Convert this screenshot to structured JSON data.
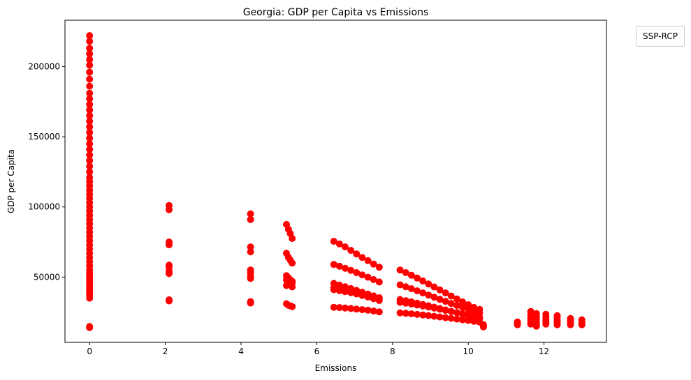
{
  "chart_data": {
    "type": "scatter",
    "title": "Georgia: GDP per Capita vs Emissions",
    "xlabel": "Emissions",
    "ylabel": "GDP per Capita",
    "xlim": [
      -0.65,
      13.65
    ],
    "ylim": [
      3500,
      233000
    ],
    "xticks": [
      0,
      2,
      4,
      6,
      8,
      10,
      12
    ],
    "yticks": [
      50000,
      100000,
      150000,
      200000
    ],
    "xtick_labels": [
      "0",
      "2",
      "4",
      "6",
      "8",
      "10",
      "12"
    ],
    "ytick_labels": [
      "50000",
      "100000",
      "150000",
      "200000"
    ],
    "grid": false,
    "marker_color": "#ff0000",
    "legend": {
      "title": "SSP-RCP",
      "placement": "outside-upper-right"
    },
    "series": [
      {
        "points": [
          [
            0,
            14000
          ],
          [
            0,
            14800
          ],
          [
            0,
            35000
          ],
          [
            0,
            37000
          ],
          [
            0,
            39000
          ],
          [
            0,
            41000
          ],
          [
            0,
            43000
          ],
          [
            0,
            45000
          ],
          [
            0,
            47000
          ],
          [
            0,
            49000
          ],
          [
            0,
            51000
          ],
          [
            0,
            53000
          ],
          [
            0,
            55000
          ],
          [
            0,
            58000
          ],
          [
            0,
            61000
          ],
          [
            0,
            64000
          ],
          [
            0,
            67000
          ],
          [
            0,
            70000
          ],
          [
            0,
            73000
          ],
          [
            0,
            76000
          ],
          [
            0,
            79000
          ],
          [
            0,
            82000
          ],
          [
            0,
            85000
          ],
          [
            0,
            88000
          ],
          [
            0,
            91000
          ],
          [
            0,
            94000
          ],
          [
            0,
            97000
          ],
          [
            0,
            100000
          ],
          [
            0,
            103000
          ],
          [
            0,
            106000
          ],
          [
            0,
            109000
          ],
          [
            0,
            112000
          ],
          [
            0,
            115000
          ],
          [
            0,
            118000
          ],
          [
            0,
            121000
          ],
          [
            0,
            125000
          ],
          [
            0,
            129000
          ],
          [
            0,
            133000
          ],
          [
            0,
            137000
          ],
          [
            0,
            141000
          ],
          [
            0,
            145000
          ],
          [
            0,
            149000
          ],
          [
            0,
            153000
          ],
          [
            0,
            157000
          ],
          [
            0,
            161000
          ],
          [
            0,
            165000
          ],
          [
            0,
            169000
          ],
          [
            0,
            173000
          ],
          [
            0,
            177000
          ],
          [
            0,
            181000
          ],
          [
            0,
            186000
          ],
          [
            0,
            191000
          ],
          [
            0,
            196000
          ],
          [
            0,
            201000
          ],
          [
            0,
            205000
          ],
          [
            0,
            209000
          ],
          [
            0,
            213000
          ],
          [
            0,
            218000
          ],
          [
            0,
            222000
          ],
          [
            2.1,
            33000
          ],
          [
            2.1,
            33800
          ],
          [
            2.1,
            52500
          ],
          [
            2.1,
            54000
          ],
          [
            2.1,
            57000
          ],
          [
            2.1,
            58500
          ],
          [
            2.1,
            73000
          ],
          [
            2.1,
            75000
          ],
          [
            2.1,
            98000
          ],
          [
            2.1,
            101000
          ],
          [
            4.25,
            31500
          ],
          [
            4.25,
            32500
          ],
          [
            4.25,
            49000
          ],
          [
            4.25,
            50500
          ],
          [
            4.25,
            53000
          ],
          [
            4.25,
            55000
          ],
          [
            4.25,
            68000
          ],
          [
            4.25,
            71500
          ],
          [
            4.25,
            91000
          ],
          [
            4.25,
            95000
          ],
          [
            5.2,
            31000
          ],
          [
            5.25,
            30000
          ],
          [
            5.3,
            29500
          ],
          [
            5.35,
            29000
          ],
          [
            5.2,
            44000
          ],
          [
            5.25,
            46000
          ],
          [
            5.3,
            45000
          ],
          [
            5.35,
            43000
          ],
          [
            5.2,
            48000
          ],
          [
            5.25,
            46500
          ],
          [
            5.3,
            45500
          ],
          [
            5.35,
            46000
          ],
          [
            5.2,
            51000
          ],
          [
            5.25,
            49500
          ],
          [
            5.3,
            48000
          ],
          [
            5.35,
            47000
          ],
          [
            5.2,
            67000
          ],
          [
            5.25,
            64000
          ],
          [
            5.3,
            62000
          ],
          [
            5.35,
            60000
          ],
          [
            5.2,
            87500
          ],
          [
            5.25,
            84000
          ],
          [
            5.3,
            81000
          ],
          [
            5.35,
            77500
          ],
          [
            6.45,
            28500
          ],
          [
            6.6,
            28300
          ],
          [
            6.75,
            28000
          ],
          [
            6.9,
            27600
          ],
          [
            7.05,
            27200
          ],
          [
            7.2,
            26800
          ],
          [
            7.35,
            26400
          ],
          [
            7.5,
            25800
          ],
          [
            7.65,
            25200
          ],
          [
            6.45,
            41000
          ],
          [
            6.6,
            40300
          ],
          [
            6.75,
            39600
          ],
          [
            6.9,
            38900
          ],
          [
            7.05,
            38000
          ],
          [
            7.2,
            36900
          ],
          [
            7.35,
            35800
          ],
          [
            7.5,
            34600
          ],
          [
            7.65,
            33300
          ],
          [
            6.45,
            42500
          ],
          [
            6.6,
            41700
          ],
          [
            6.75,
            40900
          ],
          [
            6.9,
            40000
          ],
          [
            7.05,
            39000
          ],
          [
            7.2,
            38000
          ],
          [
            7.35,
            36900
          ],
          [
            7.5,
            35700
          ],
          [
            7.65,
            34500
          ],
          [
            6.45,
            45500
          ],
          [
            6.6,
            44300
          ],
          [
            6.75,
            43100
          ],
          [
            6.9,
            41800
          ],
          [
            7.05,
            40500
          ],
          [
            7.2,
            39200
          ],
          [
            7.35,
            37900
          ],
          [
            7.5,
            36600
          ],
          [
            7.65,
            35300
          ],
          [
            6.45,
            59000
          ],
          [
            6.6,
            57700
          ],
          [
            6.75,
            56300
          ],
          [
            6.9,
            54800
          ],
          [
            7.05,
            53200
          ],
          [
            7.2,
            51600
          ],
          [
            7.35,
            49900
          ],
          [
            7.5,
            48200
          ],
          [
            7.65,
            46500
          ],
          [
            6.45,
            75500
          ],
          [
            6.6,
            73600
          ],
          [
            6.75,
            71500
          ],
          [
            6.9,
            69000
          ],
          [
            7.05,
            66500
          ],
          [
            7.2,
            64000
          ],
          [
            7.35,
            61700
          ],
          [
            7.5,
            59300
          ],
          [
            7.65,
            57000
          ],
          [
            8.2,
            24500
          ],
          [
            8.35,
            24200
          ],
          [
            8.5,
            23800
          ],
          [
            8.65,
            23400
          ],
          [
            8.8,
            23000
          ],
          [
            8.95,
            22600
          ],
          [
            9.1,
            22100
          ],
          [
            9.25,
            21600
          ],
          [
            9.4,
            21100
          ],
          [
            9.55,
            20600
          ],
          [
            9.7,
            20100
          ],
          [
            9.85,
            19600
          ],
          [
            10.0,
            19100
          ],
          [
            10.15,
            18500
          ],
          [
            10.3,
            17900
          ],
          [
            8.2,
            32000
          ],
          [
            8.35,
            31400
          ],
          [
            8.5,
            30800
          ],
          [
            8.65,
            30100
          ],
          [
            8.8,
            29400
          ],
          [
            8.95,
            28700
          ],
          [
            9.1,
            27900
          ],
          [
            9.25,
            27100
          ],
          [
            9.4,
            26300
          ],
          [
            9.55,
            25500
          ],
          [
            9.7,
            24700
          ],
          [
            9.85,
            23900
          ],
          [
            10.0,
            23100
          ],
          [
            10.15,
            22200
          ],
          [
            10.3,
            21300
          ],
          [
            8.2,
            34000
          ],
          [
            8.35,
            33200
          ],
          [
            8.5,
            32300
          ],
          [
            8.65,
            31400
          ],
          [
            8.8,
            30500
          ],
          [
            8.95,
            29600
          ],
          [
            9.1,
            28600
          ],
          [
            9.25,
            27600
          ],
          [
            9.4,
            26600
          ],
          [
            9.55,
            25600
          ],
          [
            9.7,
            24600
          ],
          [
            9.85,
            23600
          ],
          [
            10.0,
            22600
          ],
          [
            10.15,
            21500
          ],
          [
            10.3,
            20400
          ],
          [
            8.2,
            44500
          ],
          [
            8.35,
            43100
          ],
          [
            8.5,
            41700
          ],
          [
            8.65,
            40200
          ],
          [
            8.8,
            38700
          ],
          [
            8.95,
            37200
          ],
          [
            9.1,
            35700
          ],
          [
            9.25,
            34200
          ],
          [
            9.4,
            32700
          ],
          [
            9.55,
            31200
          ],
          [
            9.7,
            29800
          ],
          [
            9.85,
            28400
          ],
          [
            10.0,
            27000
          ],
          [
            10.15,
            25700
          ],
          [
            10.3,
            24400
          ],
          [
            8.2,
            55000
          ],
          [
            8.35,
            53200
          ],
          [
            8.5,
            51300
          ],
          [
            8.65,
            49300
          ],
          [
            8.8,
            47200
          ],
          [
            8.95,
            45100
          ],
          [
            9.1,
            43000
          ],
          [
            9.25,
            40900
          ],
          [
            9.4,
            38700
          ],
          [
            9.55,
            36500
          ],
          [
            9.7,
            34400
          ],
          [
            9.85,
            32300
          ],
          [
            10.0,
            30300
          ],
          [
            10.15,
            28400
          ],
          [
            10.3,
            27000
          ],
          [
            10.4,
            14500
          ],
          [
            10.4,
            15000
          ],
          [
            10.4,
            15600
          ],
          [
            10.4,
            16100
          ],
          [
            11.3,
            16000
          ],
          [
            11.3,
            17000
          ],
          [
            11.3,
            18000
          ],
          [
            11.65,
            16500
          ],
          [
            11.65,
            18500
          ],
          [
            11.65,
            20500
          ],
          [
            11.65,
            23000
          ],
          [
            11.65,
            25500
          ],
          [
            11.8,
            15000
          ],
          [
            11.8,
            16500
          ],
          [
            11.8,
            18000
          ],
          [
            11.8,
            20000
          ],
          [
            11.8,
            22000
          ],
          [
            11.8,
            24000
          ],
          [
            12.05,
            16500
          ],
          [
            12.05,
            18000
          ],
          [
            12.05,
            19500
          ],
          [
            12.05,
            21500
          ],
          [
            12.05,
            23500
          ],
          [
            12.35,
            16000
          ],
          [
            12.35,
            17500
          ],
          [
            12.35,
            19000
          ],
          [
            12.35,
            21000
          ],
          [
            12.35,
            22500
          ],
          [
            12.7,
            16000
          ],
          [
            12.7,
            17500
          ],
          [
            12.7,
            19000
          ],
          [
            12.7,
            20500
          ],
          [
            13.0,
            16000
          ],
          [
            13.0,
            17000
          ],
          [
            13.0,
            18000
          ],
          [
            13.0,
            19500
          ]
        ]
      }
    ]
  }
}
